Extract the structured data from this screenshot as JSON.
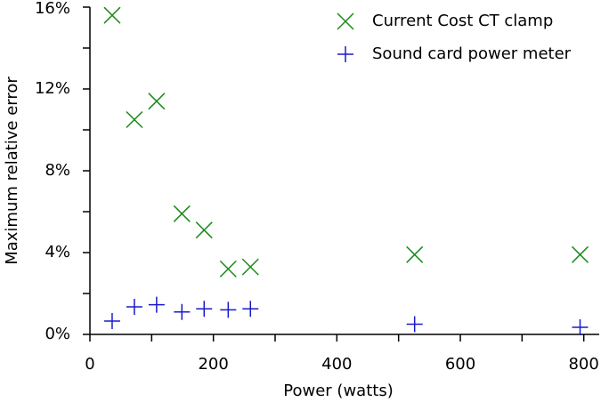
{
  "chart_data": {
    "type": "scatter",
    "xlabel": "Power (watts)",
    "ylabel": "Maximum relative error",
    "xlim": [
      0,
      825
    ],
    "xticks": [
      0,
      200,
      400,
      600,
      800
    ],
    "xminorticks": [
      100,
      300,
      500,
      700
    ],
    "ylim": [
      0,
      16
    ],
    "yticks": [
      {
        "value": 0,
        "label": "0%"
      },
      {
        "value": 4,
        "label": "4%"
      },
      {
        "value": 8,
        "label": "8%"
      },
      {
        "value": 12,
        "label": "12%"
      },
      {
        "value": 16,
        "label": "16%"
      }
    ],
    "yminorticks": [
      2,
      6,
      10,
      14
    ],
    "legend": "upper right",
    "series": [
      {
        "name": "Current Cost CT clamp",
        "color": "#1a8a1a",
        "marker": "x",
        "x": [
          36,
          72,
          108,
          149,
          185,
          224,
          260,
          526,
          794
        ],
        "values": [
          15.6,
          10.5,
          11.4,
          5.9,
          5.1,
          3.2,
          3.3,
          3.9,
          3.9
        ]
      },
      {
        "name": "Sound card power meter",
        "color": "#1a1acc",
        "marker": "+",
        "x": [
          36,
          72,
          108,
          149,
          185,
          224,
          260,
          526,
          794
        ],
        "values": [
          0.65,
          1.35,
          1.45,
          1.1,
          1.25,
          1.2,
          1.25,
          0.5,
          0.35
        ]
      }
    ]
  }
}
